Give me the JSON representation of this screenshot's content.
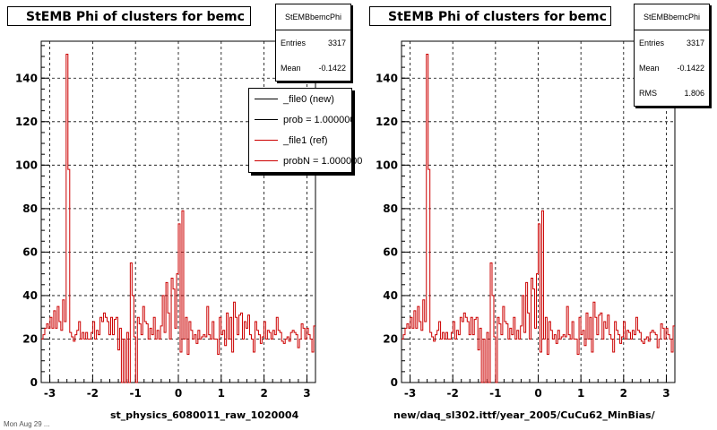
{
  "chart_data": [
    {
      "type": "histogram",
      "title": "StEMB Phi of clusters for bemc",
      "xlabel": "st_physics_6080011_raw_1020004",
      "xlim": [
        -3.2,
        3.2
      ],
      "ylim": [
        0,
        157
      ],
      "x_ticks": [
        -3,
        -2,
        -1,
        0,
        1,
        2,
        3
      ],
      "y_ticks": [
        0,
        20,
        40,
        60,
        80,
        100,
        120,
        140
      ],
      "grid": true,
      "stats": {
        "name": "StEMBbemcPhi",
        "entries_label": "Entries",
        "entries": "3317",
        "mean_label": "Mean",
        "mean": "-0.1422"
      },
      "legend": {
        "placement": "top-right",
        "entries": [
          {
            "label": "_file0 (new)",
            "color": "#000000"
          },
          {
            "label": "prob = 1.000000",
            "color": "#000000"
          },
          {
            "label": "_file1 (ref)",
            "color": "#cc0000"
          },
          {
            "label": "probN = 1.000000",
            "color": "#cc0000"
          }
        ]
      },
      "series_color": "#cc0000"
    },
    {
      "type": "histogram",
      "title": "StEMB Phi of clusters for bemc",
      "xlabel": "new/daq_sl302.ittf/year_2005/CuCu62_MinBias/",
      "xlim": [
        -3.2,
        3.2
      ],
      "ylim": [
        0,
        157
      ],
      "x_ticks": [
        -3,
        -2,
        -1,
        0,
        1,
        2,
        3
      ],
      "y_ticks": [
        0,
        20,
        40,
        60,
        80,
        100,
        120,
        140
      ],
      "grid": true,
      "stats": {
        "name": "StEMBbemcPhi",
        "entries_label": "Entries",
        "entries": "3317",
        "mean_label": "Mean",
        "mean": "-0.1422",
        "rms_label": "RMS",
        "rms": "1.806"
      },
      "series_color": "#cc0000"
    }
  ],
  "bins": {
    "xmin": -3.2,
    "xmax": 3.2,
    "values": [
      20,
      22,
      25,
      27,
      25,
      30,
      25,
      33,
      25,
      35,
      28,
      24,
      38,
      28,
      151,
      98,
      23,
      21,
      19,
      22,
      24,
      28,
      20,
      23,
      20,
      23,
      20,
      20,
      23,
      28,
      20,
      24,
      22,
      30,
      28,
      32,
      30,
      28,
      22,
      30,
      22,
      29,
      30,
      15,
      25,
      0,
      20,
      0,
      23,
      0,
      55,
      40,
      21,
      0,
      30,
      27,
      22,
      35,
      28,
      27,
      20,
      25,
      22,
      30,
      20,
      24,
      20,
      26,
      40,
      23,
      46,
      32,
      20,
      48,
      43,
      25,
      50,
      73,
      14,
      79,
      20,
      30,
      13,
      28,
      24,
      20,
      22,
      18,
      24,
      20,
      21,
      22,
      21,
      35,
      22,
      20,
      28,
      20,
      20,
      13,
      30,
      22,
      24,
      17,
      32,
      20,
      30,
      14,
      37,
      30,
      22,
      31,
      32,
      20,
      28,
      25,
      31,
      22,
      20,
      14,
      28,
      24,
      22,
      18,
      21,
      28,
      20,
      24,
      23,
      20,
      24,
      22,
      30,
      24,
      23,
      19,
      18,
      20,
      21,
      19,
      23,
      24,
      23,
      22,
      16,
      20,
      27,
      25,
      20,
      25,
      22,
      20,
      14,
      26
    ]
  },
  "footer": "Mon Aug 29 ..."
}
